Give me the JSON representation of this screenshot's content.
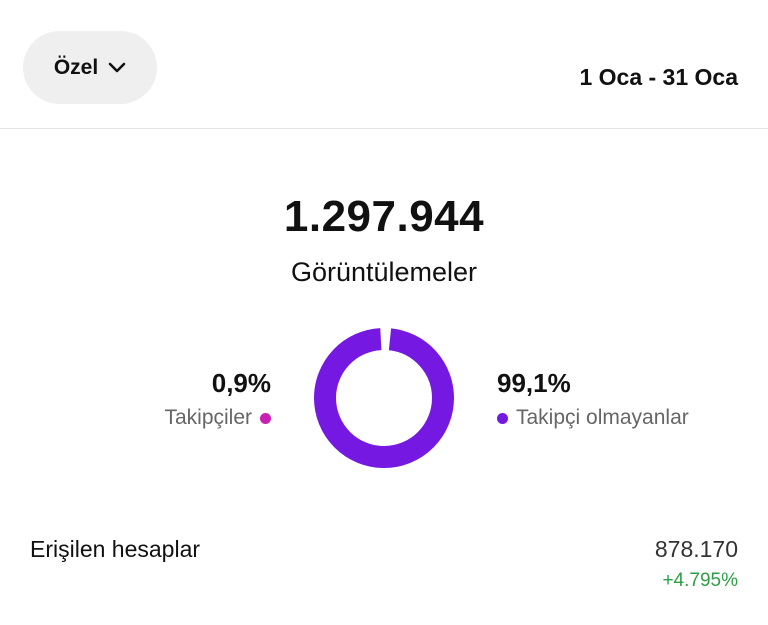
{
  "filter": {
    "label": "Özel",
    "icon": "chevron-down-icon"
  },
  "date_range": "1 Oca - 31 Oca",
  "summary": {
    "total_views": "1.297.944",
    "total_views_label": "Görüntülemeler"
  },
  "breakdown": {
    "followers": {
      "percent_text": "0,9%",
      "label": "Takipçiler",
      "color": "#c91fb5",
      "value": 0.9
    },
    "non_followers": {
      "percent_text": "99,1%",
      "label": "Takipçi olmayanlar",
      "color": "#7418e2",
      "value": 99.1
    }
  },
  "reach": {
    "label": "Erişilen hesaplar",
    "value": "878.170",
    "change": "+4.795%",
    "change_color": "#2e9e47"
  }
}
